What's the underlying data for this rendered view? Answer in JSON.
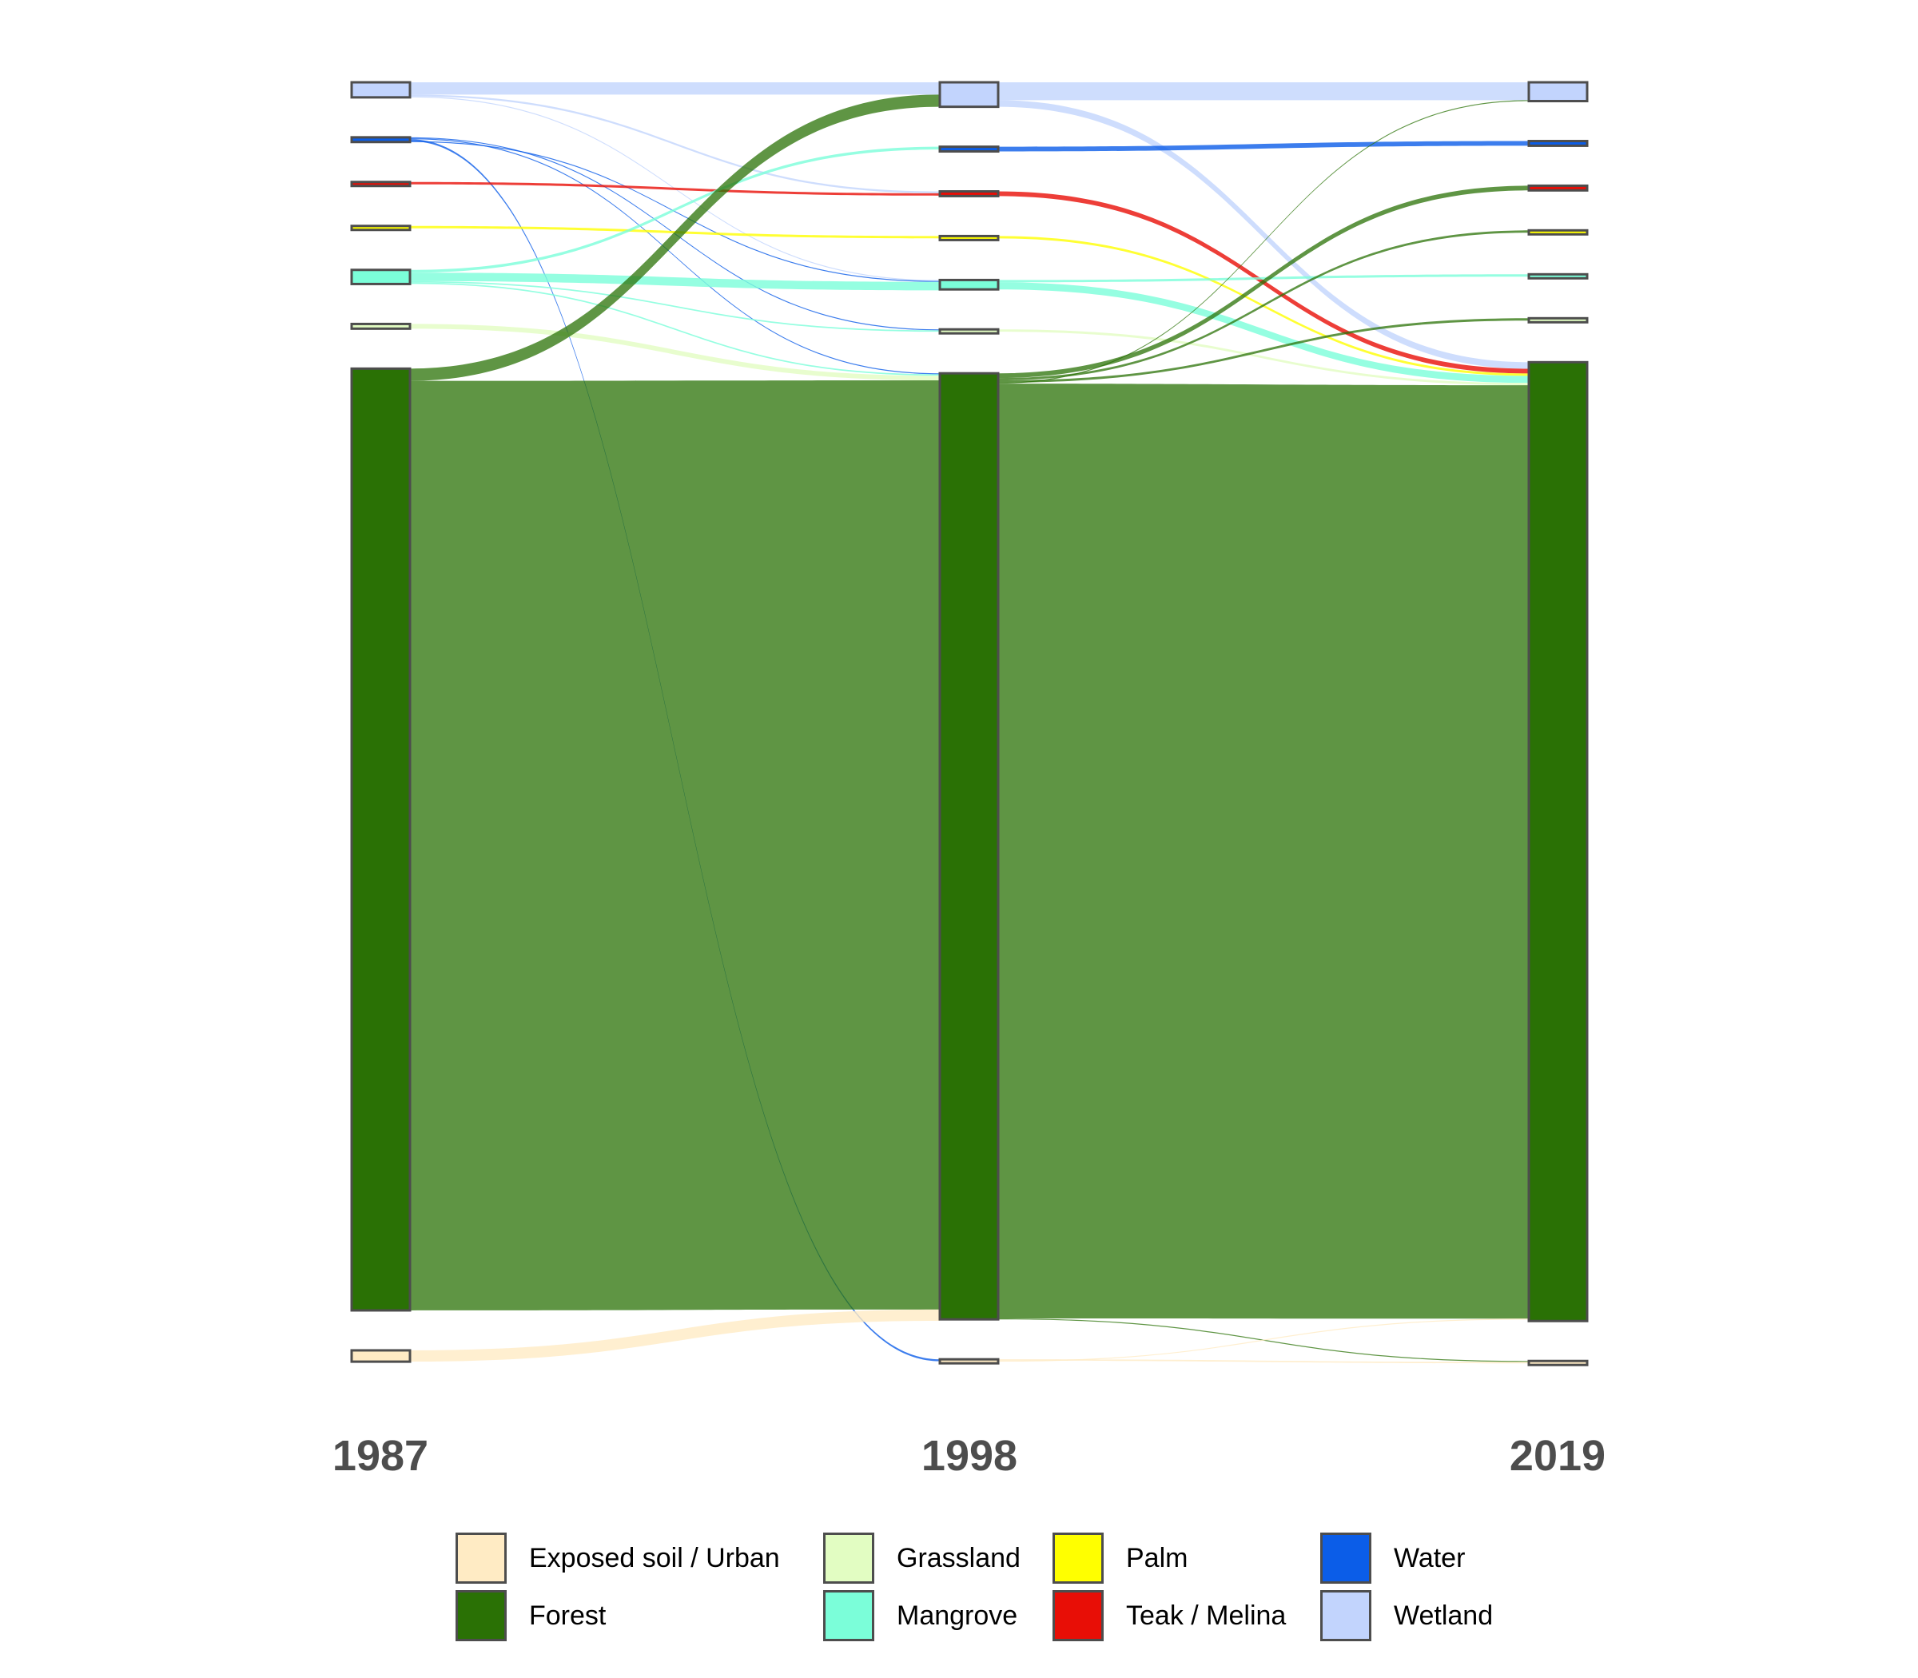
{
  "chart_data": {
    "type": "sankey",
    "title": "",
    "axes": [
      "1987",
      "1998",
      "2019"
    ],
    "categories": [
      "Exposed soil / Urban",
      "Forest",
      "Grassland",
      "Mangrove",
      "Palm",
      "Teak / Melina",
      "Water",
      "Wetland"
    ],
    "colors": {
      "Exposed soil / Urban": "#FFEBC4",
      "Forest": "#2A7105",
      "Grassland": "#E2FDC2",
      "Mangrove": "#7BFED9",
      "Palm": "#FFFF00",
      "Teak / Melina": "#E80E06",
      "Water": "#0B5DE8",
      "Wetland": "#C2D4FD"
    },
    "node_stack_order_top_to_bottom": [
      "Wetland",
      "Water",
      "Teak / Melina",
      "Palm",
      "Mangrove",
      "Grassland",
      "Forest",
      "Exposed soil / Urban"
    ],
    "nodes": {
      "1987": {
        "Wetland": 1.6,
        "Water": 0.5,
        "Teak / Melina": 0.25,
        "Palm": 0.25,
        "Mangrove": 1.5,
        "Grassland": 0.5,
        "Forest": 100,
        "Exposed soil / Urban": 1.2
      },
      "1998": {
        "Wetland": 2.6,
        "Water": 0.5,
        "Teak / Melina": 0.5,
        "Palm": 0.25,
        "Mangrove": 1.0,
        "Grassland": 0.25,
        "Forest": 100.5,
        "Exposed soil / Urban": 0.25
      },
      "2019": {
        "Wetland": 2.0,
        "Water": 0.5,
        "Teak / Melina": 0.5,
        "Palm": 0.25,
        "Mangrove": 0.25,
        "Grassland": 0.25,
        "Forest": 102,
        "Exposed soil / Urban": 0.25
      }
    },
    "flows": [
      {
        "stage": 0,
        "from": "Wetland",
        "to": "Wetland",
        "value": 1.3
      },
      {
        "stage": 0,
        "from": "Wetland",
        "to": "Teak / Melina",
        "value": 0.2
      },
      {
        "stage": 0,
        "from": "Wetland",
        "to": "Mangrove",
        "value": 0.1
      },
      {
        "stage": 0,
        "from": "Water",
        "to": "Grassland",
        "value": 0.1
      },
      {
        "stage": 0,
        "from": "Water",
        "to": "Forest",
        "value": 0.1
      },
      {
        "stage": 0,
        "from": "Water",
        "to": "Exposed soil / Urban",
        "value": 0.2
      },
      {
        "stage": 0,
        "from": "Water",
        "to": "Mangrove",
        "value": 0.1
      },
      {
        "stage": 0,
        "from": "Teak / Melina",
        "to": "Teak / Melina",
        "value": 0.25
      },
      {
        "stage": 0,
        "from": "Palm",
        "to": "Palm",
        "value": 0.25
      },
      {
        "stage": 0,
        "from": "Mangrove",
        "to": "Water",
        "value": 0.3
      },
      {
        "stage": 0,
        "from": "Mangrove",
        "to": "Mangrove",
        "value": 0.9
      },
      {
        "stage": 0,
        "from": "Mangrove",
        "to": "Grassland",
        "value": 0.15
      },
      {
        "stage": 0,
        "from": "Mangrove",
        "to": "Forest",
        "value": 0.15
      },
      {
        "stage": 0,
        "from": "Grassland",
        "to": "Forest",
        "value": 0.5
      },
      {
        "stage": 0,
        "from": "Forest",
        "to": "Wetland",
        "value": 1.3
      },
      {
        "stage": 0,
        "from": "Forest",
        "to": "Forest",
        "value": 98.7
      },
      {
        "stage": 0,
        "from": "Exposed soil / Urban",
        "to": "Forest",
        "value": 1.2
      },
      {
        "stage": 1,
        "from": "Wetland",
        "to": "Wetland",
        "value": 1.9
      },
      {
        "stage": 1,
        "from": "Wetland",
        "to": "Forest",
        "value": 0.7
      },
      {
        "stage": 1,
        "from": "Water",
        "to": "Water",
        "value": 0.5
      },
      {
        "stage": 1,
        "from": "Teak / Melina",
        "to": "Forest",
        "value": 0.5
      },
      {
        "stage": 1,
        "from": "Palm",
        "to": "Forest",
        "value": 0.25
      },
      {
        "stage": 1,
        "from": "Mangrove",
        "to": "Mangrove",
        "value": 0.25
      },
      {
        "stage": 1,
        "from": "Mangrove",
        "to": "Forest",
        "value": 0.75
      },
      {
        "stage": 1,
        "from": "Grassland",
        "to": "Forest",
        "value": 0.25
      },
      {
        "stage": 1,
        "from": "Forest",
        "to": "Teak / Melina",
        "value": 0.5
      },
      {
        "stage": 1,
        "from": "Forest",
        "to": "Palm",
        "value": 0.25
      },
      {
        "stage": 1,
        "from": "Forest",
        "to": "Grassland",
        "value": 0.25
      },
      {
        "stage": 1,
        "from": "Forest",
        "to": "Wetland",
        "value": 0.1
      },
      {
        "stage": 1,
        "from": "Forest",
        "to": "Forest",
        "value": 99.3
      },
      {
        "stage": 1,
        "from": "Forest",
        "to": "Exposed soil / Urban",
        "value": 0.1
      },
      {
        "stage": 1,
        "from": "Exposed soil / Urban",
        "to": "Exposed soil / Urban",
        "value": 0.15
      },
      {
        "stage": 1,
        "from": "Exposed soil / Urban",
        "to": "Forest",
        "value": 0.1
      }
    ],
    "legend": {
      "position": "bottom",
      "items": [
        "Exposed soil / Urban",
        "Forest",
        "Grassland",
        "Mangrove",
        "Palm",
        "Teak / Melina",
        "Water",
        "Wetland"
      ]
    },
    "grid": false
  }
}
